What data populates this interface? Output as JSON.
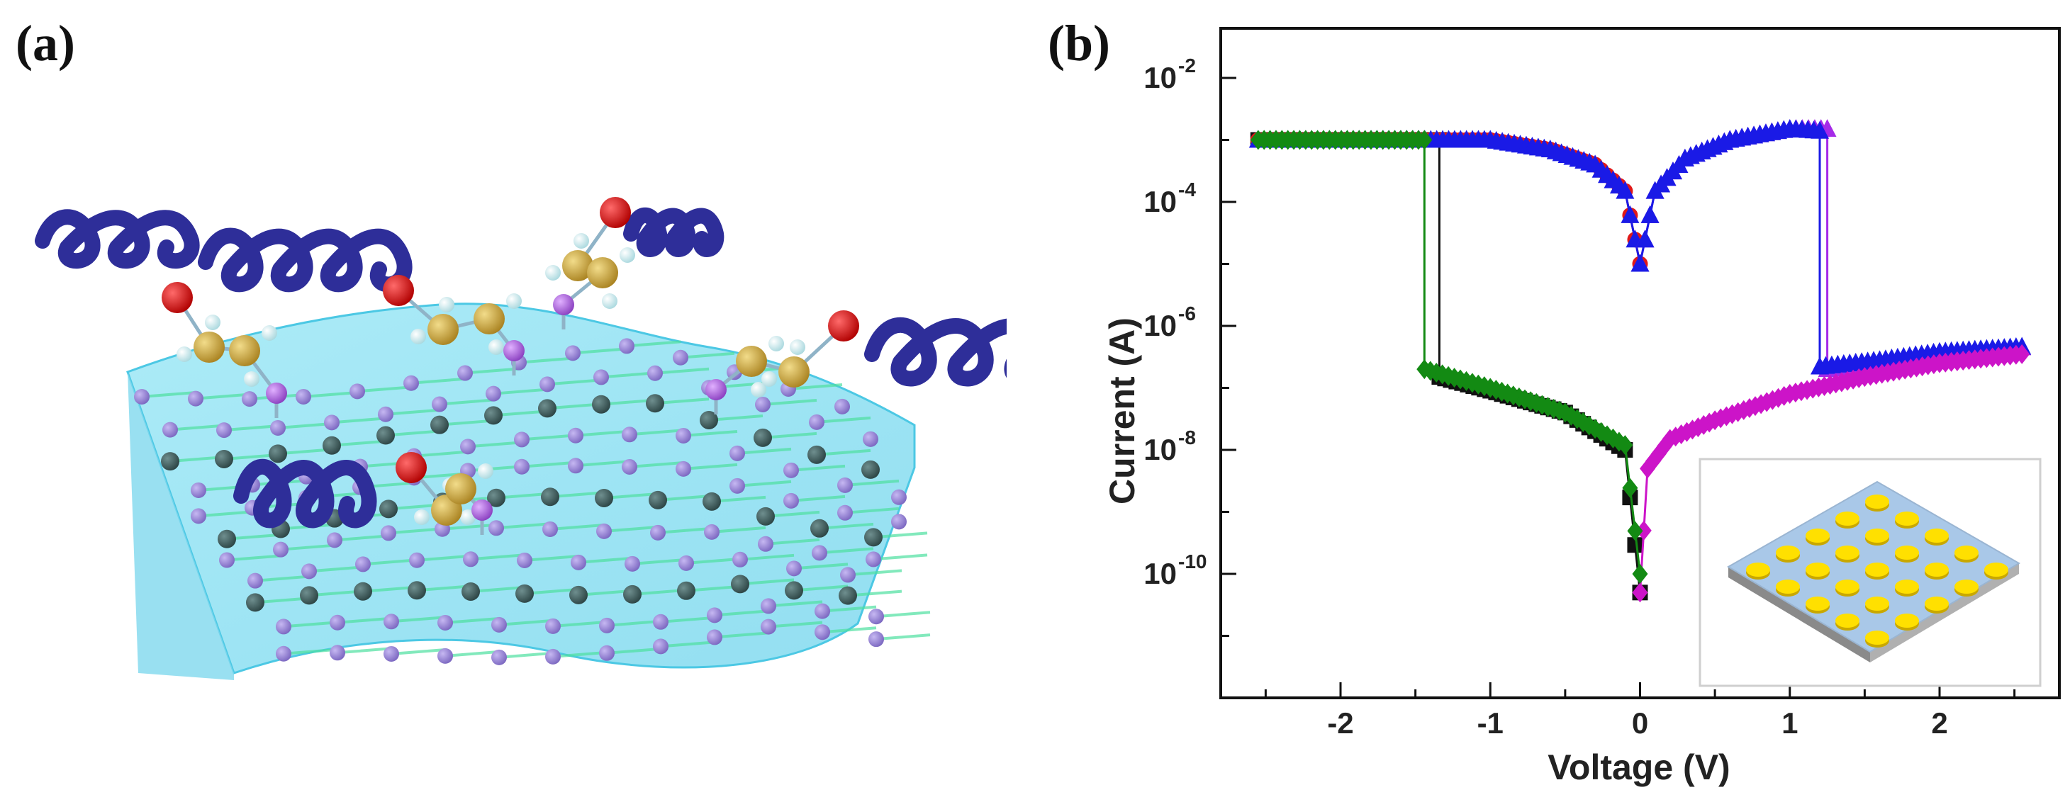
{
  "panel_labels": {
    "a": "(a)",
    "b": "(b)"
  },
  "colors": {
    "helix": "#2e2e99",
    "sheet": "#8fe3f2",
    "atom_purple": "#9f86d8",
    "atom_dark": "#3c5a5a",
    "bond": "#4ee0a0",
    "oxygen": "#cc1111",
    "carbon": "#c8a640",
    "hydrogen": "#cfeff2",
    "sulfur": "#b55ad8",
    "series_black": "#111111",
    "series_red": "#e01818",
    "series_blue": "#1a1ae6",
    "series_violet": "#a52ae8",
    "series_magenta": "#cc14c8",
    "series_green": "#138a13",
    "electrode": "#ffe000",
    "substrate": "#a9c8e8"
  },
  "icons": {
    "panel_a": "molecular-structure-illustration",
    "inset": "device-electrode-array-illustration"
  },
  "chart_data": {
    "type": "line",
    "xlabel": "Voltage (V)",
    "ylabel": "Current (A)",
    "xlim": [
      -2.8,
      2.8
    ],
    "ylim_log10": [
      -12,
      -1.2
    ],
    "y_scale": "log",
    "x_ticks": [
      -2,
      -1,
      0,
      1,
      2
    ],
    "x_tick_labels": [
      "-2",
      "-1",
      "0",
      "1",
      "2"
    ],
    "y_ticks": [
      -10,
      -8,
      -6,
      -4,
      -2
    ],
    "y_tick_labels": [
      {
        "base": "10",
        "exp": "-10"
      },
      {
        "base": "10",
        "exp": "-8"
      },
      {
        "base": "10",
        "exp": "-6"
      },
      {
        "base": "10",
        "exp": "-4"
      },
      {
        "base": "10",
        "exp": "-2"
      }
    ],
    "grid": false,
    "legend": "none",
    "inset": "device schematic, bottom-right",
    "series": [
      {
        "color": "#111111",
        "marker": "square",
        "x": [
          -2.55,
          -1.34,
          -1.34,
          -1.0,
          -0.5,
          -0.1,
          0.0
        ],
        "y": [
          0.001,
          0.001,
          1.5e-07,
          9e-08,
          4e-08,
          1e-08,
          5e-11
        ]
      },
      {
        "color": "#e01818",
        "marker": "circle",
        "x": [
          -2.55,
          -1.0,
          -0.6,
          -0.3,
          -0.1,
          0.0
        ],
        "y": [
          0.001,
          0.001,
          0.0007,
          0.0004,
          0.00015,
          1e-05
        ]
      },
      {
        "color": "#1a1ae6",
        "marker": "triangle",
        "x": [
          -2.55,
          -1.0,
          -0.6,
          -0.3,
          -0.1,
          0.0
        ],
        "y": [
          0.001,
          0.001,
          0.0007,
          0.0004,
          0.00015,
          1e-05
        ]
      },
      {
        "color": "#a52ae8",
        "marker": "triangle",
        "x": [
          0.0,
          0.1,
          0.3,
          0.6,
          1.0,
          1.25,
          1.25,
          1.6,
          2.0,
          2.55
        ],
        "y": [
          1e-05,
          0.00015,
          0.0005,
          0.001,
          0.0015,
          0.0015,
          2e-07,
          2.5e-07,
          3.5e-07,
          4.5e-07
        ]
      },
      {
        "color": "#1a1ae6",
        "marker": "triangle",
        "x": [
          0.0,
          0.1,
          0.3,
          0.6,
          1.0,
          1.2,
          1.2,
          1.6,
          2.0,
          2.55
        ],
        "y": [
          1e-05,
          0.00015,
          0.0005,
          0.001,
          0.0015,
          0.0014,
          2.2e-07,
          2.8e-07,
          3.8e-07,
          4.6e-07
        ]
      },
      {
        "color": "#cc14c8",
        "marker": "diamond",
        "x": [
          0.0,
          0.05,
          0.2,
          0.5,
          1.0,
          1.5,
          2.0,
          2.55
        ],
        "y": [
          5e-11,
          5e-09,
          1.5e-08,
          3e-08,
          8e-08,
          1.5e-07,
          2.5e-07,
          3.5e-07
        ]
      },
      {
        "color": "#138a13",
        "marker": "diamond",
        "x": [
          -2.55,
          -1.44,
          -1.44,
          -1.0,
          -0.5,
          -0.1,
          0.0
        ],
        "y": [
          0.001,
          0.001,
          2e-07,
          1e-07,
          4e-08,
          1.2e-08,
          1e-10
        ]
      }
    ]
  }
}
